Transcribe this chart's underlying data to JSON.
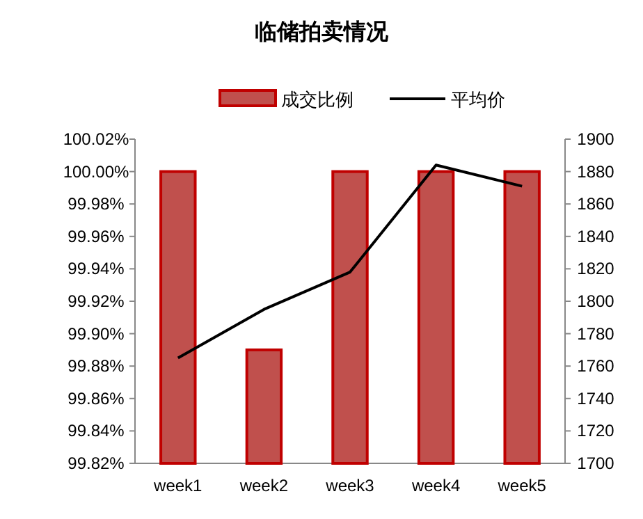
{
  "chart_data": {
    "type": "bar",
    "title": "临储拍卖情况",
    "categories": [
      "week1",
      "week2",
      "week3",
      "week4",
      "week5"
    ],
    "series": [
      {
        "name": "成交比例",
        "color": "#c0504d",
        "values": [
          100.0,
          99.89,
          100.0,
          100.0,
          100.0
        ]
      },
      {
        "name": "平均价",
        "type": "line",
        "axis": "y2",
        "color": "#000000",
        "values": [
          1765,
          1795,
          1818,
          1884,
          1871
        ]
      }
    ],
    "ylim": [
      99.82,
      100.02
    ],
    "yticks": [
      {
        "value": 99.82,
        "label": "99.82%"
      },
      {
        "value": 99.84,
        "label": "99.84%"
      },
      {
        "value": 99.86,
        "label": "99.86%"
      },
      {
        "value": 99.88,
        "label": "99.88%"
      },
      {
        "value": 99.9,
        "label": "99.90%"
      },
      {
        "value": 99.92,
        "label": "99.92%"
      },
      {
        "value": 99.94,
        "label": "99.94%"
      },
      {
        "value": 99.96,
        "label": "99.96%"
      },
      {
        "value": 99.98,
        "label": "99.98%"
      },
      {
        "value": 100.0,
        "label": "100.00%"
      },
      {
        "value": 100.02,
        "label": "100.02%"
      }
    ],
    "y2lim": [
      1700,
      1900
    ],
    "y2ticks": [
      1700,
      1720,
      1740,
      1760,
      1780,
      1800,
      1820,
      1840,
      1860,
      1880,
      1900
    ],
    "grid": false,
    "legend": "top",
    "marker": "none",
    "line_style": "solid"
  }
}
